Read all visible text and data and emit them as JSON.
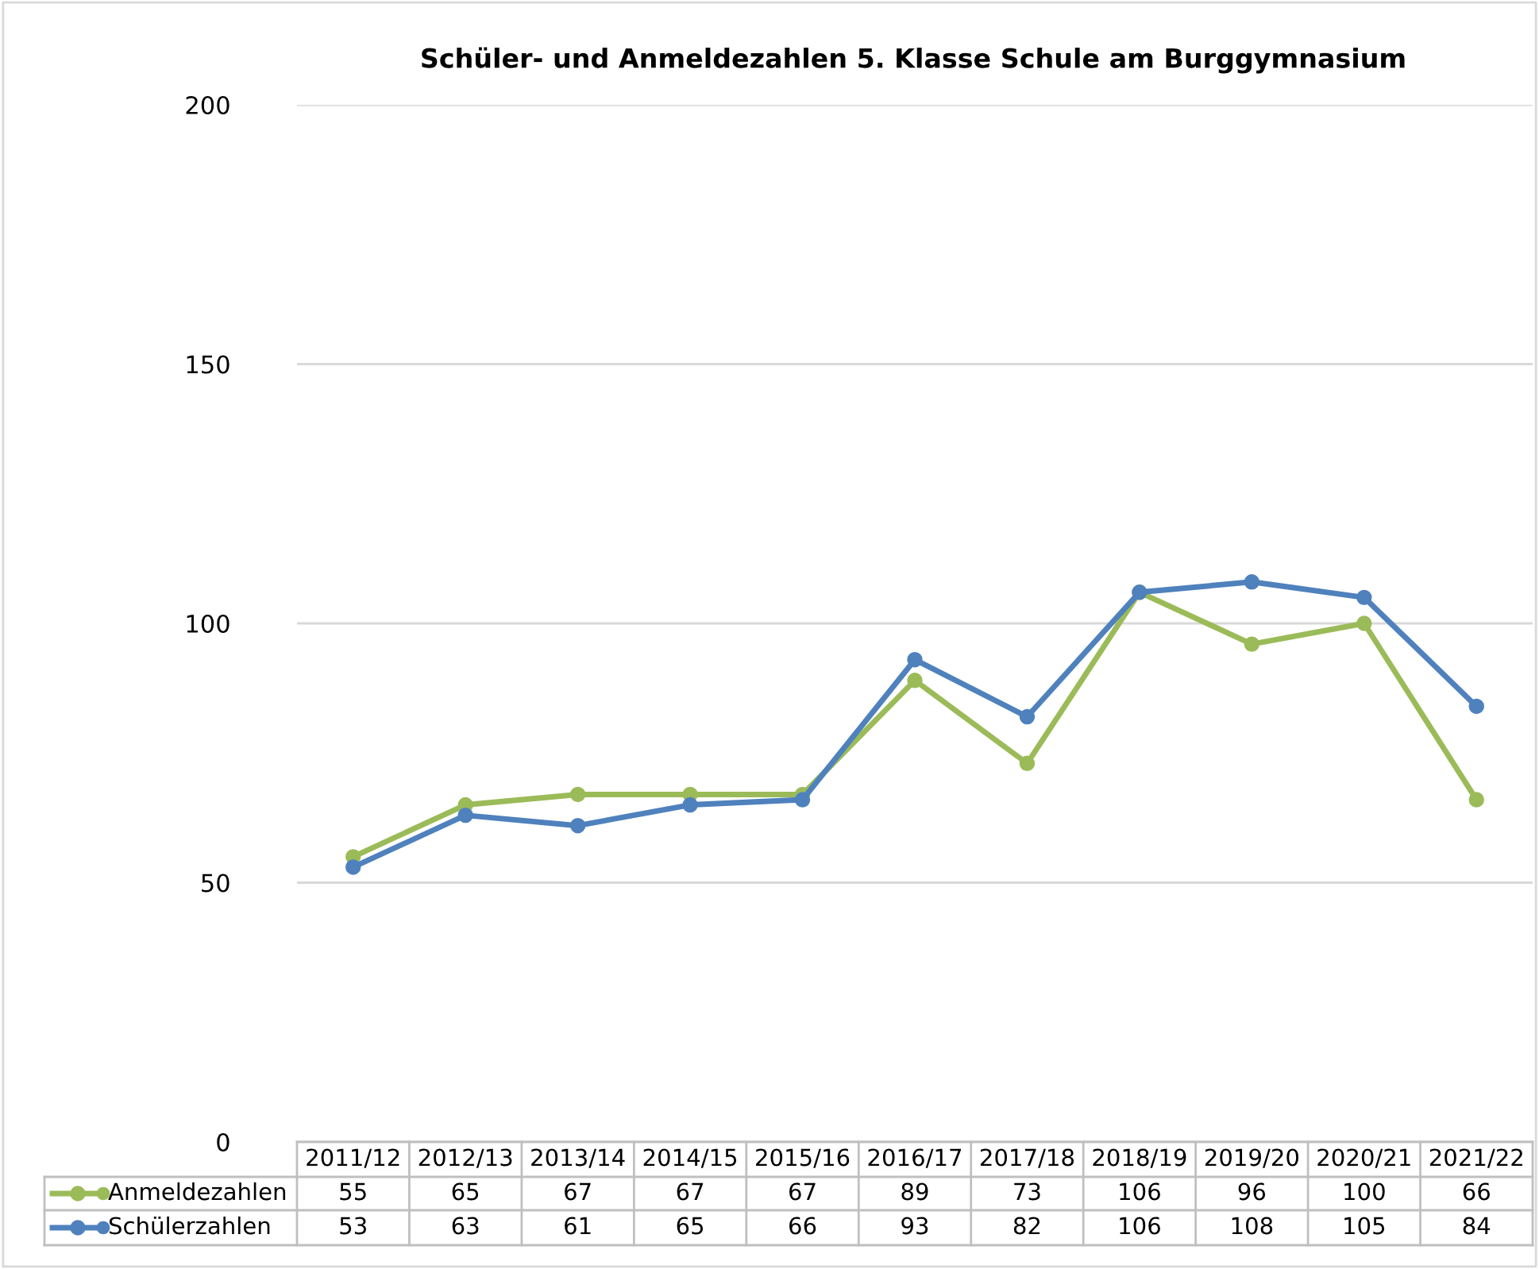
{
  "chart_data": {
    "type": "line",
    "title": "Schüler- und Anmeldezahlen 5. Klasse Schule am Burggymnasium",
    "categories": [
      "2011/12",
      "2012/13",
      "2013/14",
      "2014/15",
      "2015/16",
      "2016/17",
      "2017/18",
      "2018/19",
      "2019/20",
      "2020/21",
      "2021/22"
    ],
    "series": [
      {
        "name": "Anmeldezahlen",
        "color": "#9bbb59",
        "values": [
          55,
          65,
          67,
          67,
          67,
          89,
          73,
          106,
          96,
          100,
          66
        ]
      },
      {
        "name": "Schülerzahlen",
        "color": "#4f81bd",
        "values": [
          53,
          63,
          61,
          65,
          66,
          93,
          82,
          106,
          108,
          105,
          84
        ]
      }
    ],
    "ylim": [
      0,
      200
    ],
    "yticks": [
      0,
      50,
      100,
      150,
      200
    ],
    "grid": "y",
    "marker": "circle",
    "line_style": "solid",
    "legend": "bottom",
    "data_labels": true
  }
}
